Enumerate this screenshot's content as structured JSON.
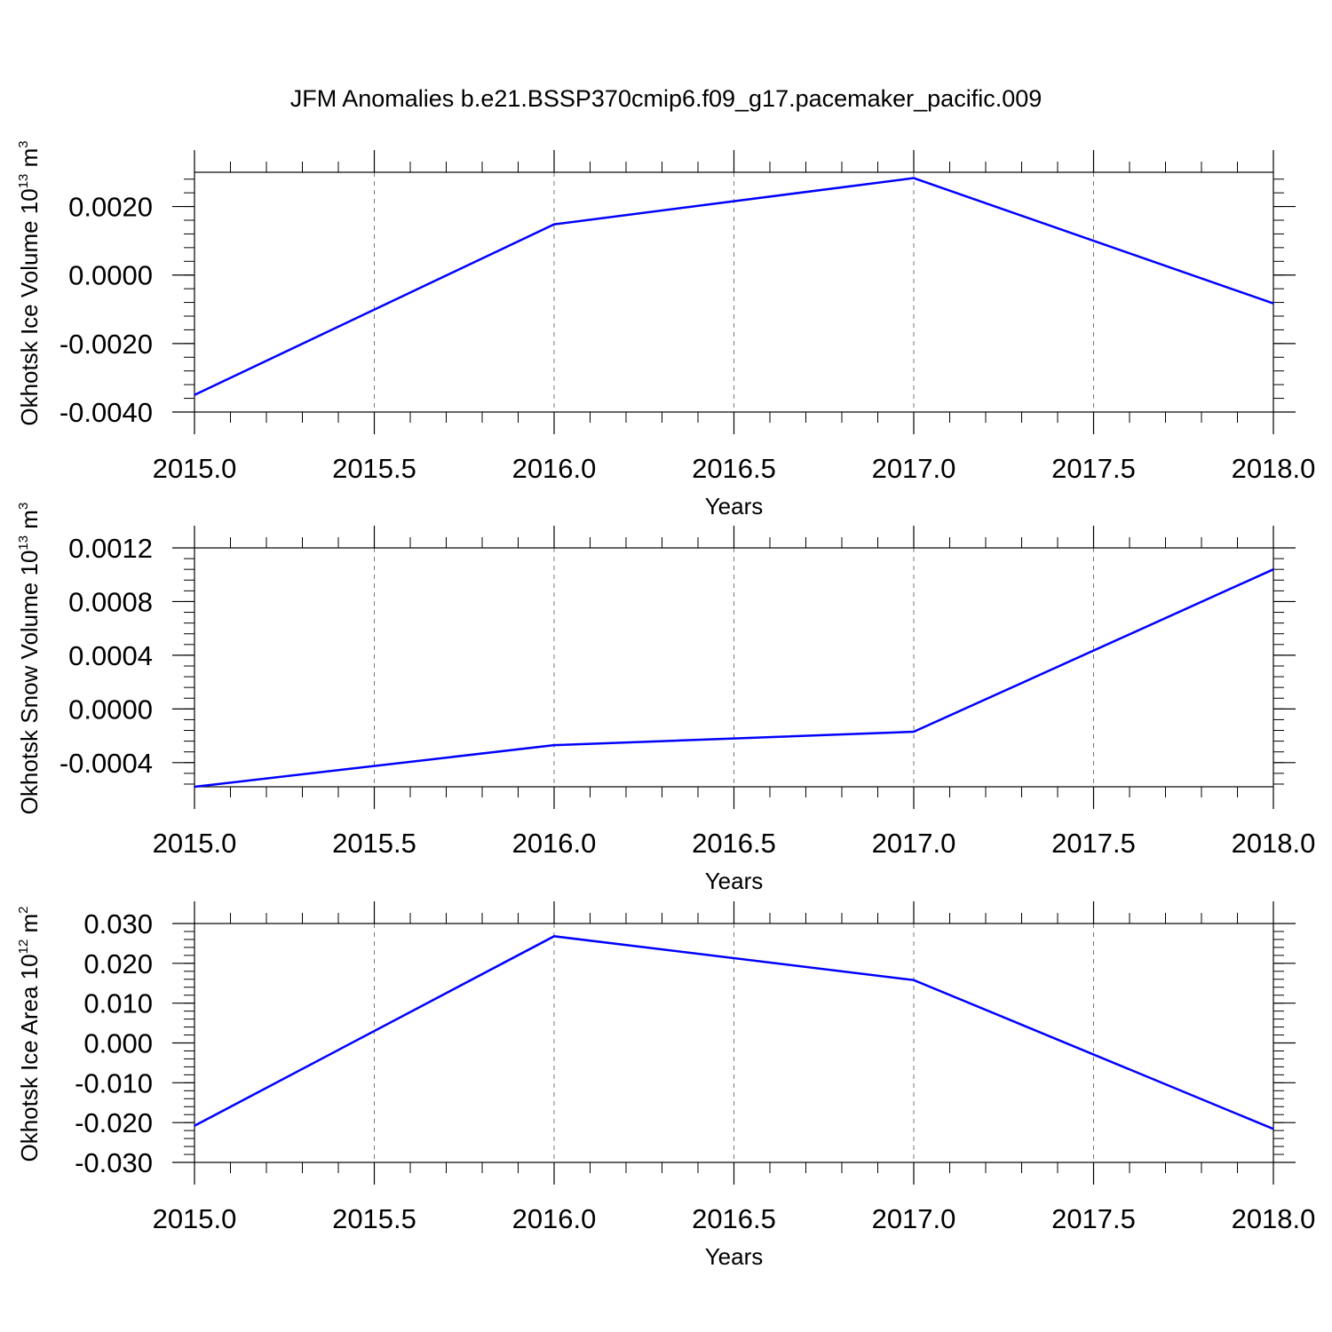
{
  "title": "JFM Anomalies b.e21.BSSP370cmip6.f09_g17.pacemaker_pacific.009",
  "colors": {
    "line": "#0000ff",
    "axes": "#000000",
    "grid": "#777777",
    "background": "#ffffff"
  },
  "chart_data": [
    {
      "type": "line",
      "xlabel": "Years",
      "ylabel": {
        "text": "Okhotsk Ice Volume 10",
        "sup": "13",
        "unit": " m",
        "unit_sup": "3"
      },
      "x": [
        2015,
        2016,
        2017,
        2018
      ],
      "y": [
        -0.0035,
        0.00148,
        0.00283,
        -0.00083
      ],
      "xlim": [
        2015.0,
        2018.0
      ],
      "ylim": [
        -0.004,
        0.003
      ],
      "xticks": [
        2015.0,
        2015.5,
        2016.0,
        2016.5,
        2017.0,
        2017.5,
        2018.0
      ],
      "xtick_labels": [
        "2015.0",
        "2015.5",
        "2016.0",
        "2016.5",
        "2017.0",
        "2017.5",
        "2018.0"
      ],
      "yticks": [
        -0.004,
        -0.002,
        0.0,
        0.002
      ],
      "ytick_labels": [
        "-0.0040",
        "-0.0020",
        "0.0000",
        "0.0020"
      ],
      "minor_ystep": 0.0004,
      "grid": "vertical dashed at major x ticks"
    },
    {
      "type": "line",
      "xlabel": "Years",
      "ylabel": {
        "text": "Okhotsk Snow Volume 10",
        "sup": "13",
        "unit": " m",
        "unit_sup": "3"
      },
      "x": [
        2015,
        2016,
        2017,
        2018
      ],
      "y": [
        -0.00058,
        -0.00027,
        -0.00017,
        0.00104
      ],
      "xlim": [
        2015.0,
        2018.0
      ],
      "ylim": [
        -0.00058,
        0.0012
      ],
      "xticks": [
        2015.0,
        2015.5,
        2016.0,
        2016.5,
        2017.0,
        2017.5,
        2018.0
      ],
      "xtick_labels": [
        "2015.0",
        "2015.5",
        "2016.0",
        "2016.5",
        "2017.0",
        "2017.5",
        "2018.0"
      ],
      "yticks": [
        -0.0004,
        0.0,
        0.0004,
        0.0008,
        0.0012
      ],
      "ytick_labels": [
        "-0.0004",
        "0.0000",
        "0.0004",
        "0.0008",
        "0.0012"
      ],
      "minor_ystep": 8e-05,
      "grid": "vertical dashed at major x ticks"
    },
    {
      "type": "line",
      "xlabel": "Years",
      "ylabel": {
        "text": "Okhotsk Ice Area 10",
        "sup": "12",
        "unit": " m",
        "unit_sup": "2"
      },
      "x": [
        2015,
        2016,
        2017,
        2018
      ],
      "y": [
        -0.0208,
        0.0268,
        0.0158,
        -0.0216
      ],
      "xlim": [
        2015.0,
        2018.0
      ],
      "ylim": [
        -0.03,
        0.03
      ],
      "xticks": [
        2015.0,
        2015.5,
        2016.0,
        2016.5,
        2017.0,
        2017.5,
        2018.0
      ],
      "xtick_labels": [
        "2015.0",
        "2015.5",
        "2016.0",
        "2016.5",
        "2017.0",
        "2017.5",
        "2018.0"
      ],
      "yticks": [
        -0.03,
        -0.02,
        -0.01,
        0.0,
        0.01,
        0.02,
        0.03
      ],
      "ytick_labels": [
        "-0.030",
        "-0.020",
        "-0.010",
        "0.000",
        "0.010",
        "0.020",
        "0.030"
      ],
      "minor_ystep": 0.002,
      "grid": "vertical dashed at major x ticks"
    }
  ]
}
